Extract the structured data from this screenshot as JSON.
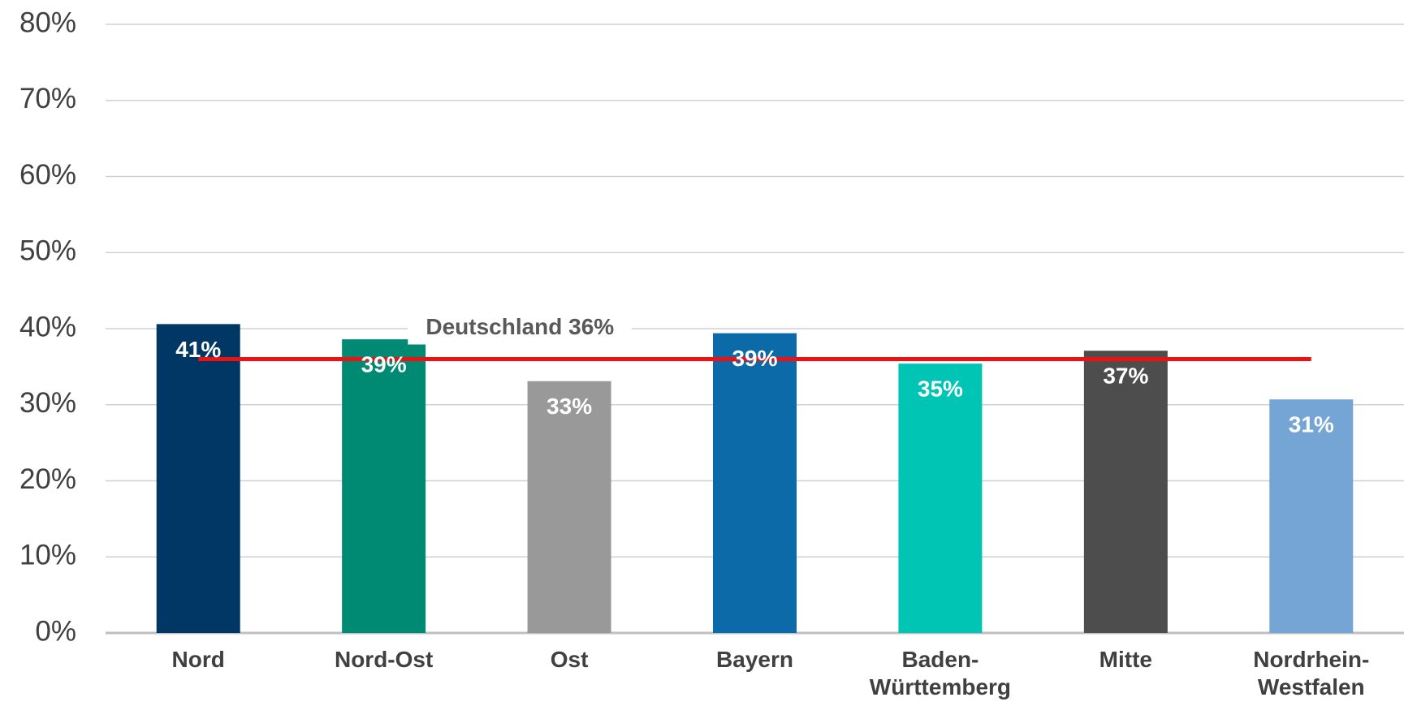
{
  "chart_data": {
    "type": "bar",
    "categories": [
      "Nord",
      "Nord-Ost",
      "Ost",
      "Bayern",
      "Baden-\nWürttemberg",
      "Mitte",
      "Nordrhein-\nWestfalen"
    ],
    "values": [
      40.6,
      38.6,
      33.1,
      39.4,
      35.4,
      37.1,
      30.7
    ],
    "value_labels": [
      "41%",
      "39%",
      "33%",
      "39%",
      "35%",
      "37%",
      "31%"
    ],
    "colors": [
      "#003764",
      "#008a74",
      "#999999",
      "#0d6aa8",
      "#00c4b4",
      "#4d4d4d",
      "#75a5d4"
    ],
    "ylim": [
      0,
      80
    ],
    "yticks": [
      {
        "value": 0,
        "label": "0%"
      },
      {
        "value": 10,
        "label": "10%"
      },
      {
        "value": 20,
        "label": "20%"
      },
      {
        "value": 30,
        "label": "30%"
      },
      {
        "value": 40,
        "label": "40%"
      },
      {
        "value": 50,
        "label": "50%"
      },
      {
        "value": 60,
        "label": "60%"
      },
      {
        "value": 70,
        "label": "70%"
      },
      {
        "value": 80,
        "label": "80%"
      }
    ],
    "grid": true,
    "reference_line": {
      "value": 36,
      "label": "Deutschland 36%",
      "color": "#ee1111"
    }
  }
}
